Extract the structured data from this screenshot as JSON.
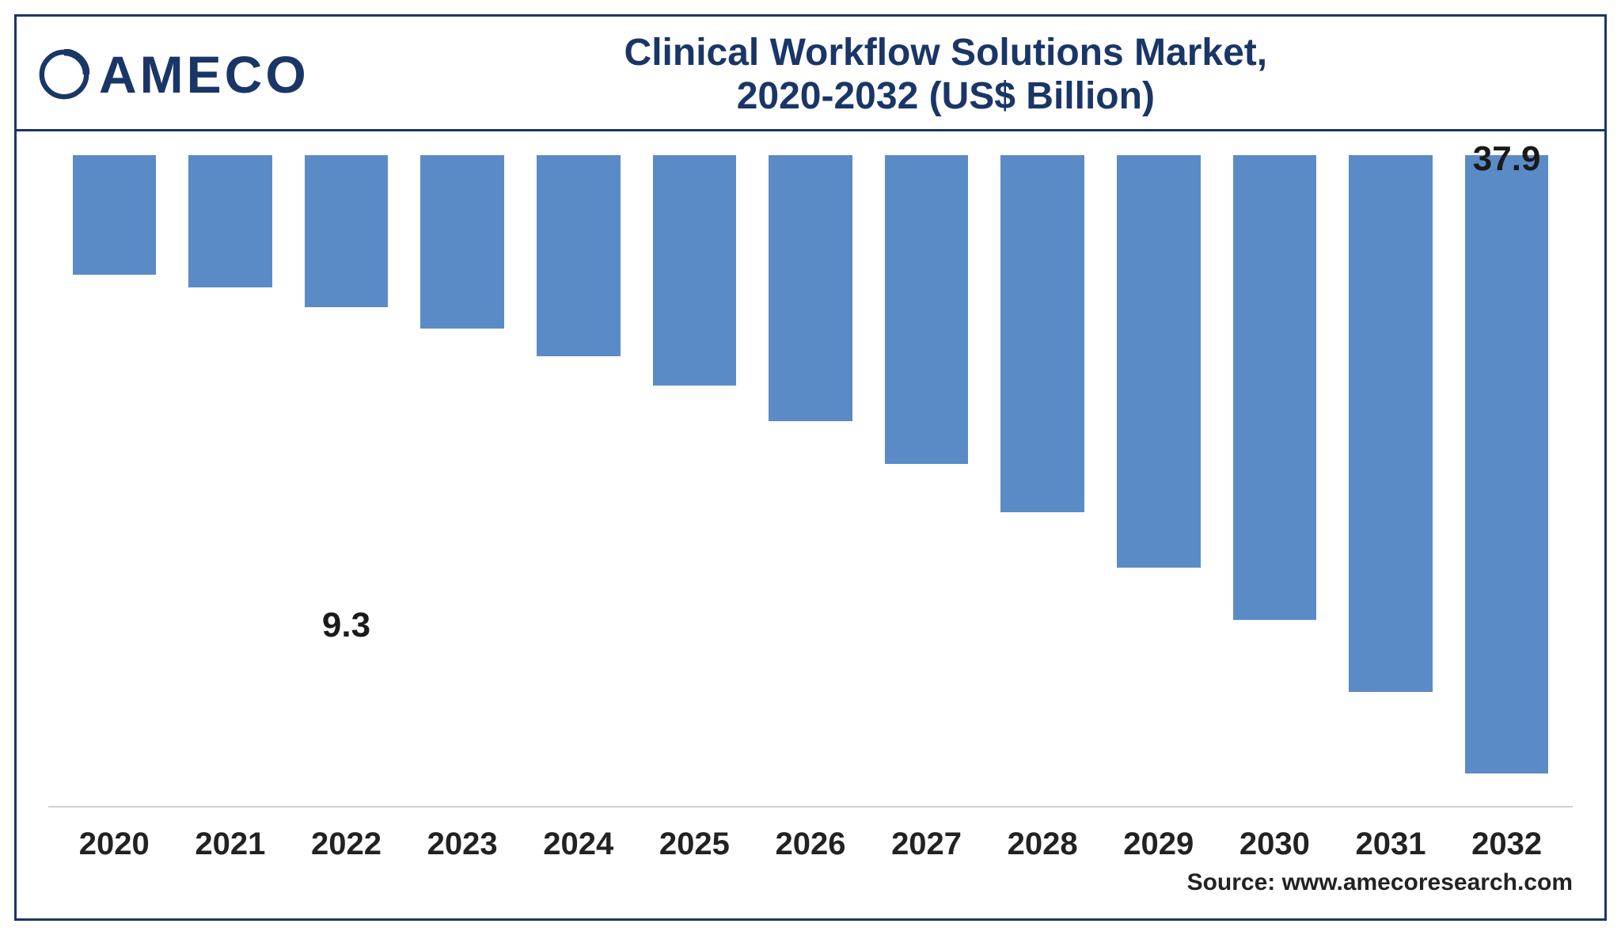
{
  "logo_text": "AMECO",
  "title_line1": "Clinical Workflow Solutions Market,",
  "title_line2": "2020-2032 (US$ Billion)",
  "source_text": "Source: www.amecoresearch.com",
  "chart": {
    "type": "bar",
    "categories": [
      "2020",
      "2021",
      "2022",
      "2023",
      "2024",
      "2025",
      "2026",
      "2027",
      "2028",
      "2029",
      "2030",
      "2031",
      "2032"
    ],
    "values": [
      7.3,
      8.1,
      9.3,
      10.6,
      12.3,
      14.1,
      16.3,
      18.9,
      21.9,
      25.3,
      28.5,
      32.9,
      37.9
    ],
    "value_labels": {
      "2": "9.3",
      "12": "37.9"
    },
    "bar_color": "#5b8bc6",
    "ymax": 40,
    "label_fontsize": 44,
    "tick_fontsize": 40,
    "title_fontsize": 48,
    "baseline_color": "#d0d0d0",
    "text_color": "#1a1a1a",
    "background_color": "#ffffff",
    "border_color": "#1a3666"
  }
}
